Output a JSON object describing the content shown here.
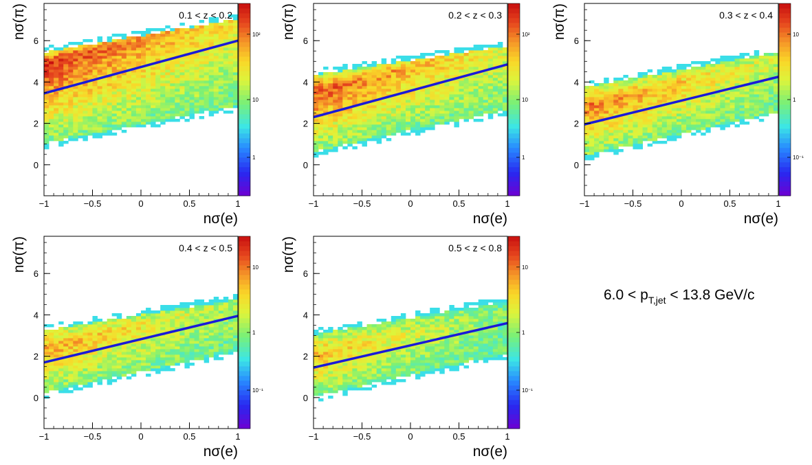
{
  "figure_label": {
    "prefix": "6.0 < p",
    "subscript": "T,jet",
    "suffix": " < 13.8 GeV/c"
  },
  "chart_data": [
    {
      "type": "heatmap",
      "title": "0.1 < z < 0.2",
      "xlabel": "nσ(e)",
      "ylabel": "nσ(π)",
      "xlim": [
        -1,
        1
      ],
      "ylim": [
        -1.5,
        7.8
      ],
      "xticks": [
        "−1",
        "−0.5",
        "0",
        "0.5",
        "1"
      ],
      "yticks": [
        "0",
        "2",
        "4",
        "6"
      ],
      "fit_line": {
        "x": [
          -1,
          1
        ],
        "y": [
          3.45,
          6.0
        ]
      },
      "band": {
        "upper_at_xmin": 5.7,
        "upper_at_xmax": 7.3,
        "lower_at_xmin": 0.8,
        "lower_at_xmax": 2.6,
        "dense_upper_offset": 1.5
      },
      "colorbar": {
        "scale": "log",
        "ticks": [
          "10²",
          "10",
          "1"
        ]
      }
    },
    {
      "type": "heatmap",
      "title": "0.2 < z < 0.3",
      "xlabel": "nσ(e)",
      "ylabel": "nσ(π)",
      "xlim": [
        -1,
        1
      ],
      "ylim": [
        -1.5,
        7.8
      ],
      "xticks": [
        "−1",
        "−0.5",
        "0",
        "0.5",
        "1"
      ],
      "yticks": [
        "0",
        "2",
        "4",
        "6"
      ],
      "fit_line": {
        "x": [
          -1,
          1
        ],
        "y": [
          2.3,
          4.85
        ]
      },
      "band": {
        "upper_at_xmin": 4.6,
        "upper_at_xmax": 6.0,
        "lower_at_xmin": 0.4,
        "lower_at_xmax": 2.4,
        "dense_upper_offset": 1.2
      },
      "colorbar": {
        "scale": "log",
        "ticks": [
          "10²",
          "10",
          "1"
        ]
      }
    },
    {
      "type": "heatmap",
      "title": "0.3 < z < 0.4",
      "xlabel": "nσ(e)",
      "ylabel": "nσ(π)",
      "xlim": [
        -1,
        1
      ],
      "ylim": [
        -1.5,
        7.8
      ],
      "xticks": [
        "−1",
        "−0.5",
        "0",
        "0.5",
        "1"
      ],
      "yticks": [
        "0",
        "2",
        "4",
        "6"
      ],
      "fit_line": {
        "x": [
          -1,
          1
        ],
        "y": [
          1.95,
          4.25
        ]
      },
      "band": {
        "upper_at_xmin": 4.0,
        "upper_at_xmax": 5.7,
        "lower_at_xmin": 0.2,
        "lower_at_xmax": 2.3,
        "dense_upper_offset": 0.9
      },
      "colorbar": {
        "scale": "log",
        "ticks": [
          "10",
          "1",
          "10⁻¹"
        ]
      }
    },
    {
      "type": "heatmap",
      "title": "0.4 < z < 0.5",
      "xlabel": "nσ(e)",
      "ylabel": "nσ(π)",
      "xlim": [
        -1,
        1
      ],
      "ylim": [
        -1.5,
        7.8
      ],
      "xticks": [
        "−1",
        "−0.5",
        "0",
        "0.5",
        "1"
      ],
      "yticks": [
        "0",
        "2",
        "4",
        "6"
      ],
      "fit_line": {
        "x": [
          -1,
          1
        ],
        "y": [
          1.7,
          3.95
        ]
      },
      "band": {
        "upper_at_xmin": 3.5,
        "upper_at_xmax": 5.0,
        "lower_at_xmin": 0.0,
        "lower_at_xmax": 2.0,
        "dense_upper_offset": 0.7
      },
      "colorbar": {
        "scale": "log",
        "ticks": [
          "10",
          "1",
          "10⁻¹"
        ]
      }
    },
    {
      "type": "heatmap",
      "title": "0.5 < z < 0.8",
      "xlabel": "nσ(e)",
      "ylabel": "nσ(π)",
      "xlim": [
        -1,
        1
      ],
      "ylim": [
        -1.5,
        7.8
      ],
      "xticks": [
        "−1",
        "−0.5",
        "0",
        "0.5",
        "1"
      ],
      "yticks": [
        "0",
        "2",
        "4",
        "6"
      ],
      "fit_line": {
        "x": [
          -1,
          1
        ],
        "y": [
          1.45,
          3.6
        ]
      },
      "band": {
        "upper_at_xmin": 3.3,
        "upper_at_xmax": 4.9,
        "lower_at_xmin": -0.2,
        "lower_at_xmax": 1.9,
        "dense_upper_offset": 0.6
      },
      "colorbar": {
        "scale": "log",
        "ticks": [
          "10",
          "1",
          "10⁻¹"
        ]
      }
    }
  ]
}
